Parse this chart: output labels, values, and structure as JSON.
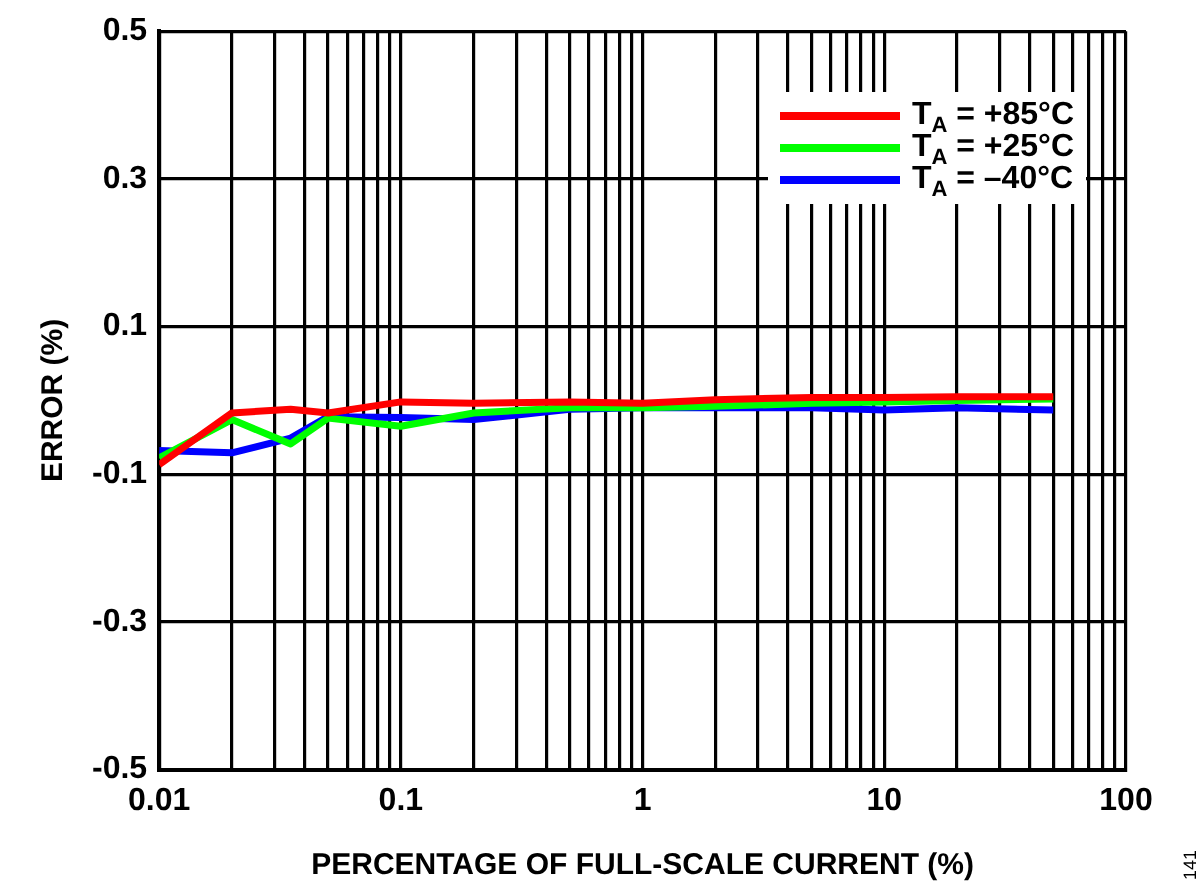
{
  "chart_data": {
    "type": "line",
    "xlabel": "PERCENTAGE OF FULL-SCALE CURRENT (%)",
    "ylabel": "ERROR (%)",
    "x": [
      0.01,
      0.02,
      0.035,
      0.05,
      0.1,
      0.2,
      0.5,
      1,
      2,
      5,
      10,
      20,
      50
    ],
    "series": [
      {
        "name": "T$_{A}$ = +85°C",
        "color": "#ff0000",
        "values": [
          -0.087,
          -0.017,
          -0.012,
          -0.017,
          -0.002,
          -0.004,
          -0.002,
          -0.004,
          0.001,
          0.004,
          0.004,
          0.005,
          0.005
        ]
      },
      {
        "name": "T$_{A}$ = +25°C",
        "color": "#00ff00",
        "values": [
          -0.078,
          -0.026,
          -0.059,
          -0.024,
          -0.035,
          -0.017,
          -0.01,
          -0.01,
          -0.008,
          -0.004,
          -0.002,
          0.0,
          0.002
        ]
      },
      {
        "name": "T$_{A}$ = –40°C",
        "color": "#0000ff",
        "values": [
          -0.068,
          -0.071,
          -0.051,
          -0.022,
          -0.023,
          -0.026,
          -0.012,
          -0.01,
          -0.01,
          -0.01,
          -0.013,
          -0.01,
          -0.013
        ]
      }
    ],
    "log": "x",
    "xlim": [
      0.01,
      100
    ],
    "xticks": [
      0.01,
      {
        "value": 0.02,
        "label": null
      },
      {
        "value": 0.03,
        "label": null
      },
      {
        "value": 0.04,
        "label": null
      },
      {
        "value": 0.05,
        "label": null
      },
      {
        "value": 0.06,
        "label": null
      },
      {
        "value": 0.07,
        "label": null
      },
      {
        "value": 0.08,
        "label": null
      },
      {
        "value": 0.09,
        "label": null
      },
      0.1,
      {
        "value": 0.2,
        "label": null
      },
      {
        "value": 0.3,
        "label": null
      },
      {
        "value": 0.4,
        "label": null
      },
      {
        "value": 0.5,
        "label": null
      },
      {
        "value": 0.6,
        "label": null
      },
      {
        "value": 0.7,
        "label": null
      },
      {
        "value": 0.8,
        "label": null
      },
      {
        "value": 0.9,
        "label": null
      },
      1,
      {
        "value": 2,
        "label": null
      },
      {
        "value": 3,
        "label": null
      },
      {
        "value": 4,
        "label": null
      },
      {
        "value": 5,
        "label": null
      },
      {
        "value": 6,
        "label": null
      },
      {
        "value": 7,
        "label": null
      },
      {
        "value": 8,
        "label": null
      },
      {
        "value": 9,
        "label": null
      },
      10,
      {
        "value": 20,
        "label": null
      },
      {
        "value": 30,
        "label": null
      },
      {
        "value": 40,
        "label": null
      },
      {
        "value": 50,
        "label": null
      },
      {
        "value": 60,
        "label": null
      },
      {
        "value": 70,
        "label": null
      },
      {
        "value": 80,
        "label": null
      },
      {
        "value": 90,
        "label": null
      },
      100
    ],
    "ylim": [
      -0.5,
      0.5
    ],
    "yticks": [
      -0.5,
      -0.3,
      -0.1,
      0.1,
      0.3,
      0.5
    ],
    "grid": true,
    "legend": "top right",
    "marker": "none",
    "line_style": "solid",
    "annotations": [
      "141"
    ]
  }
}
